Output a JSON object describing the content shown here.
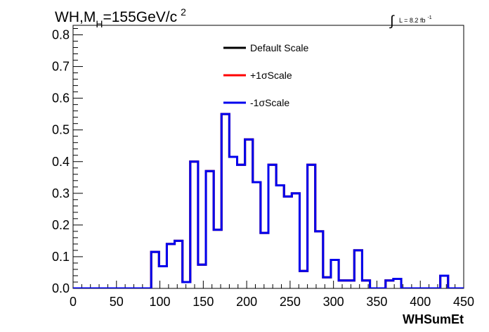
{
  "chart_data": {
    "type": "line",
    "title": {
      "main": "WH,M",
      "sub": "H",
      "tail": "=155GeV/c",
      "sup": "2"
    },
    "lumi": {
      "text": "L = 8.2 fb",
      "sup": "-1"
    },
    "xlabel": "WHSumEt",
    "ylabel": "",
    "xlim": [
      0,
      450
    ],
    "ylim": [
      0,
      0.83
    ],
    "x_ticks": [
      "0",
      "50",
      "100",
      "150",
      "200",
      "250",
      "300",
      "350",
      "400",
      "450"
    ],
    "y_ticks": [
      "0.0",
      "0.1",
      "0.2",
      "0.3",
      "0.4",
      "0.5",
      "0.6",
      "0.7",
      "0.8"
    ],
    "legend_position": "top-center",
    "grid": false,
    "bin_edges": [
      0,
      9,
      18,
      27,
      36,
      45,
      54,
      63,
      72,
      81,
      90,
      99,
      108,
      117,
      126,
      135,
      144,
      153,
      162,
      171,
      180,
      189,
      198,
      207,
      216,
      225,
      234,
      243,
      252,
      261,
      270,
      279,
      288,
      297,
      306,
      315,
      324,
      333,
      342,
      351,
      360,
      369,
      378,
      387,
      396,
      405,
      414,
      423,
      432,
      441,
      450
    ],
    "series": [
      {
        "name": "Default Scale",
        "color": "#000000",
        "values": [
          0,
          0,
          0,
          0,
          0,
          0,
          0,
          0,
          0,
          0,
          0.115,
          0.07,
          0.14,
          0.15,
          0.02,
          0.4,
          0.075,
          0.37,
          0.185,
          0.55,
          0.415,
          0.39,
          0.47,
          0.335,
          0.175,
          0.39,
          0.325,
          0.29,
          0.3,
          0.055,
          0.39,
          0.18,
          0.035,
          0.09,
          0.025,
          0.025,
          0.12,
          0.025,
          0,
          0,
          0.025,
          0.03,
          0,
          0,
          0,
          0,
          0,
          0.04,
          0,
          0
        ]
      },
      {
        "name": "+1σScale",
        "color": "#ff0000",
        "values": [
          0,
          0,
          0,
          0,
          0,
          0,
          0,
          0,
          0,
          0,
          0.115,
          0.07,
          0.14,
          0.15,
          0.02,
          0.4,
          0.075,
          0.37,
          0.185,
          0.55,
          0.415,
          0.39,
          0.47,
          0.335,
          0.175,
          0.39,
          0.325,
          0.29,
          0.3,
          0.055,
          0.39,
          0.18,
          0.035,
          0.09,
          0.025,
          0.025,
          0.12,
          0.025,
          0,
          0,
          0.025,
          0.03,
          0,
          0,
          0,
          0,
          0,
          0.04,
          0,
          0
        ]
      },
      {
        "name": "-1σScale",
        "color": "#0000ee",
        "values": [
          0,
          0,
          0,
          0,
          0,
          0,
          0,
          0,
          0,
          0,
          0.115,
          0.07,
          0.14,
          0.15,
          0.02,
          0.4,
          0.075,
          0.37,
          0.185,
          0.55,
          0.415,
          0.39,
          0.47,
          0.335,
          0.175,
          0.39,
          0.325,
          0.29,
          0.3,
          0.055,
          0.39,
          0.18,
          0.035,
          0.09,
          0.025,
          0.025,
          0.12,
          0.025,
          0,
          0,
          0.025,
          0.03,
          0,
          0,
          0,
          0,
          0,
          0.04,
          0,
          0
        ]
      }
    ]
  }
}
